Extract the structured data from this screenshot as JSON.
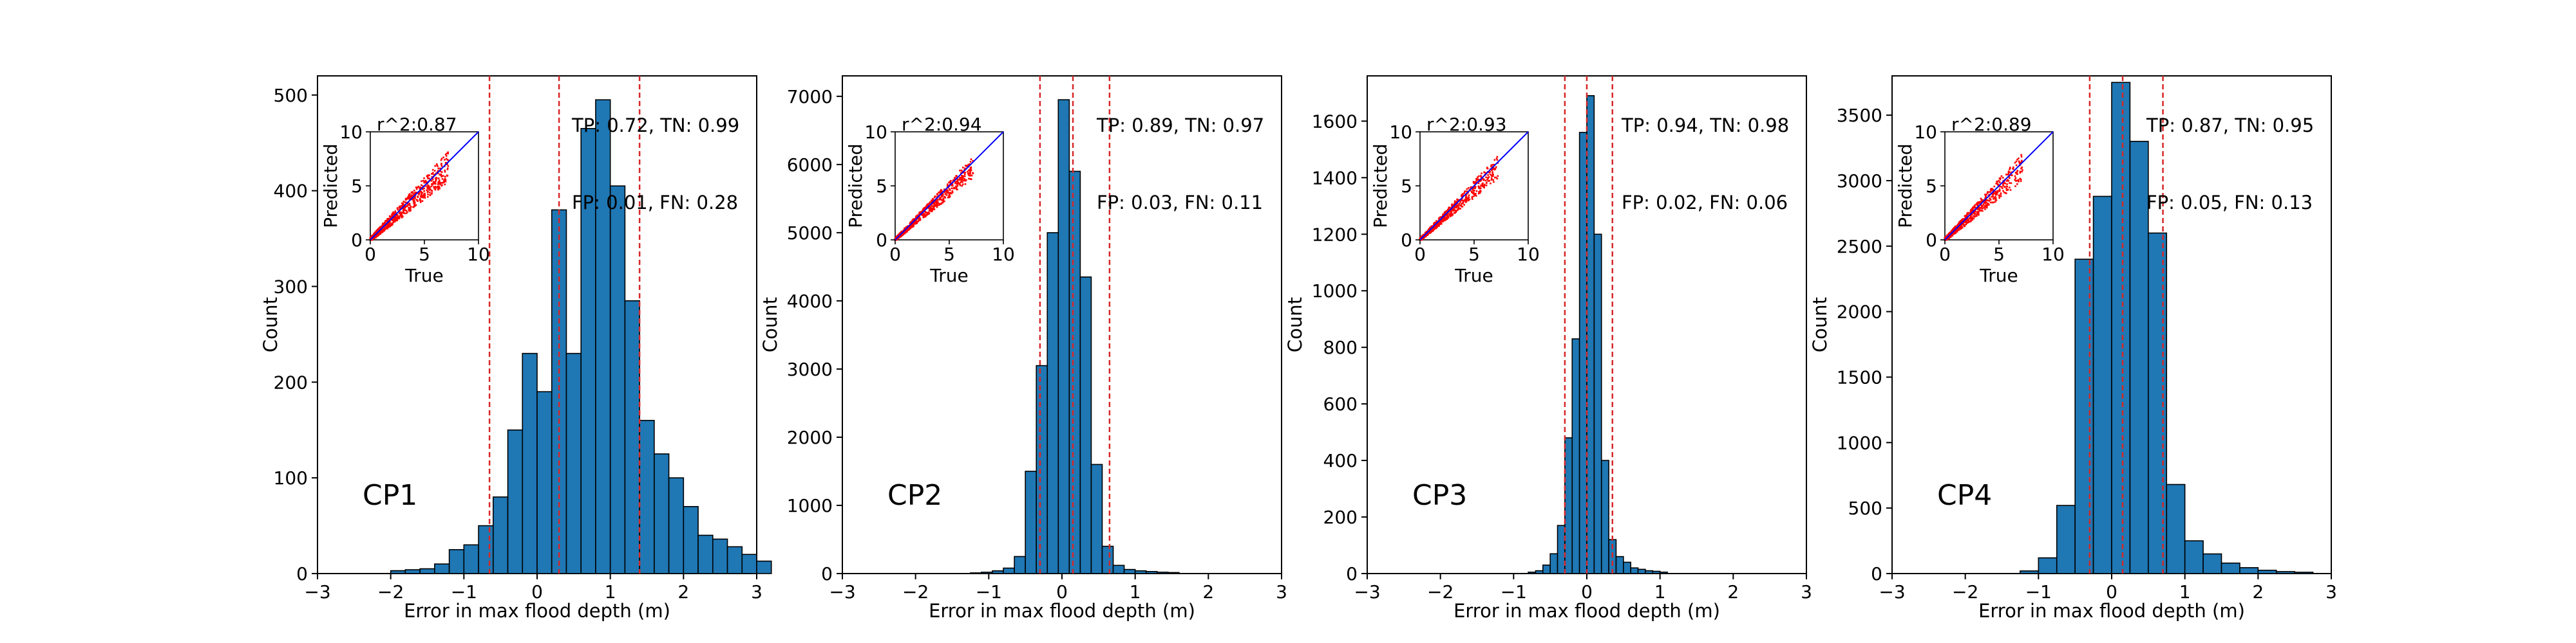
{
  "chart_data": [
    {
      "type": "bar",
      "panel_label": "CP1",
      "xlabel": "Error in max flood depth (m)",
      "ylabel": "Count",
      "xlim": [
        -3,
        3
      ],
      "ylim": [
        0,
        520
      ],
      "xticks": [
        -3,
        -2,
        -1,
        0,
        1,
        2,
        3
      ],
      "yticks": [
        0,
        100,
        200,
        300,
        400,
        500
      ],
      "bin_width": 0.2,
      "bin_start": -3.0,
      "values": [
        0,
        0,
        0,
        0,
        0,
        3,
        4,
        5,
        10,
        25,
        30,
        50,
        80,
        150,
        230,
        190,
        380,
        230,
        465,
        495,
        405,
        285,
        160,
        125,
        100,
        70,
        40,
        36,
        28,
        20,
        13
      ],
      "vlines": [
        -0.65,
        0.3,
        1.4
      ],
      "annotations": [
        "TP: 0.72, TN: 0.99",
        "FP: 0.01, FN: 0.28"
      ],
      "inset": {
        "title": "r^2:0.87",
        "xlabel": "True",
        "ylabel": "Predicted",
        "xlim": [
          0,
          10
        ],
        "ylim": [
          0,
          10
        ],
        "ticks": [
          0,
          5,
          10
        ]
      }
    },
    {
      "type": "bar",
      "panel_label": "CP2",
      "xlabel": "Error in max flood depth (m)",
      "ylabel": "Count",
      "xlim": [
        -3,
        3
      ],
      "ylim": [
        0,
        7300
      ],
      "xticks": [
        -3,
        -2,
        -1,
        0,
        1,
        2,
        3
      ],
      "yticks": [
        0,
        1000,
        2000,
        3000,
        4000,
        5000,
        6000,
        7000
      ],
      "bin_width": 0.15,
      "bin_start": -1.25,
      "values": [
        10,
        20,
        40,
        80,
        250,
        1500,
        3050,
        5000,
        6950,
        5900,
        4350,
        1600,
        400,
        120,
        60,
        40,
        30,
        20,
        15
      ],
      "vlines": [
        -0.3,
        0.15,
        0.65
      ],
      "annotations": [
        "TP: 0.89, TN: 0.97",
        "FP: 0.03, FN: 0.11"
      ],
      "inset": {
        "title": "r^2:0.94",
        "xlabel": "True",
        "ylabel": "Predicted",
        "xlim": [
          0,
          10
        ],
        "ylim": [
          0,
          10
        ],
        "ticks": [
          0,
          5,
          10
        ]
      }
    },
    {
      "type": "bar",
      "panel_label": "CP3",
      "xlabel": "Error in max flood depth (m)",
      "ylabel": "Count",
      "xlim": [
        -3,
        3
      ],
      "ylim": [
        0,
        1760
      ],
      "xticks": [
        -3,
        -2,
        -1,
        0,
        1,
        2,
        3
      ],
      "yticks": [
        0,
        200,
        400,
        600,
        800,
        1000,
        1200,
        1400,
        1600
      ],
      "bin_width": 0.1,
      "bin_start": -0.8,
      "values": [
        5,
        10,
        30,
        70,
        170,
        480,
        830,
        1560,
        1690,
        1200,
        400,
        120,
        60,
        40,
        20,
        15,
        10,
        8,
        5
      ],
      "vlines": [
        -0.3,
        0.0,
        0.35
      ],
      "annotations": [
        "TP: 0.94, TN: 0.98",
        "FP: 0.02, FN: 0.06"
      ],
      "inset": {
        "title": "r^2:0.93",
        "xlabel": "True",
        "ylabel": "Predicted",
        "xlim": [
          0,
          10
        ],
        "ylim": [
          0,
          10
        ],
        "ticks": [
          0,
          5,
          10
        ]
      }
    },
    {
      "type": "bar",
      "panel_label": "CP4",
      "xlabel": "Error in max flood depth (m)",
      "ylabel": "Count",
      "xlim": [
        -3,
        3
      ],
      "ylim": [
        0,
        3800
      ],
      "xticks": [
        -3,
        -2,
        -1,
        0,
        1,
        2,
        3
      ],
      "yticks": [
        0,
        500,
        1000,
        1500,
        2000,
        2500,
        3000,
        3500
      ],
      "bin_width": 0.25,
      "bin_start": -1.25,
      "values": [
        20,
        120,
        520,
        2400,
        2880,
        3750,
        3300,
        2600,
        680,
        250,
        150,
        80,
        45,
        25,
        15,
        10
      ],
      "vlines": [
        -0.3,
        0.15,
        0.7
      ],
      "annotations": [
        "TP: 0.87, TN: 0.95",
        "FP: 0.05, FN: 0.13"
      ],
      "inset": {
        "title": "r^2:0.89",
        "xlabel": "True",
        "ylabel": "Predicted",
        "xlim": [
          0,
          10
        ],
        "ylim": [
          0,
          10
        ],
        "ticks": [
          0,
          5,
          10
        ]
      }
    }
  ],
  "colors": {
    "bar_fill": "#1f77b4",
    "bar_edge": "#000000",
    "vline": "#d62728",
    "panel_label": "#008000",
    "scatter": "#ff0000",
    "identity_line": "#0000ff"
  }
}
